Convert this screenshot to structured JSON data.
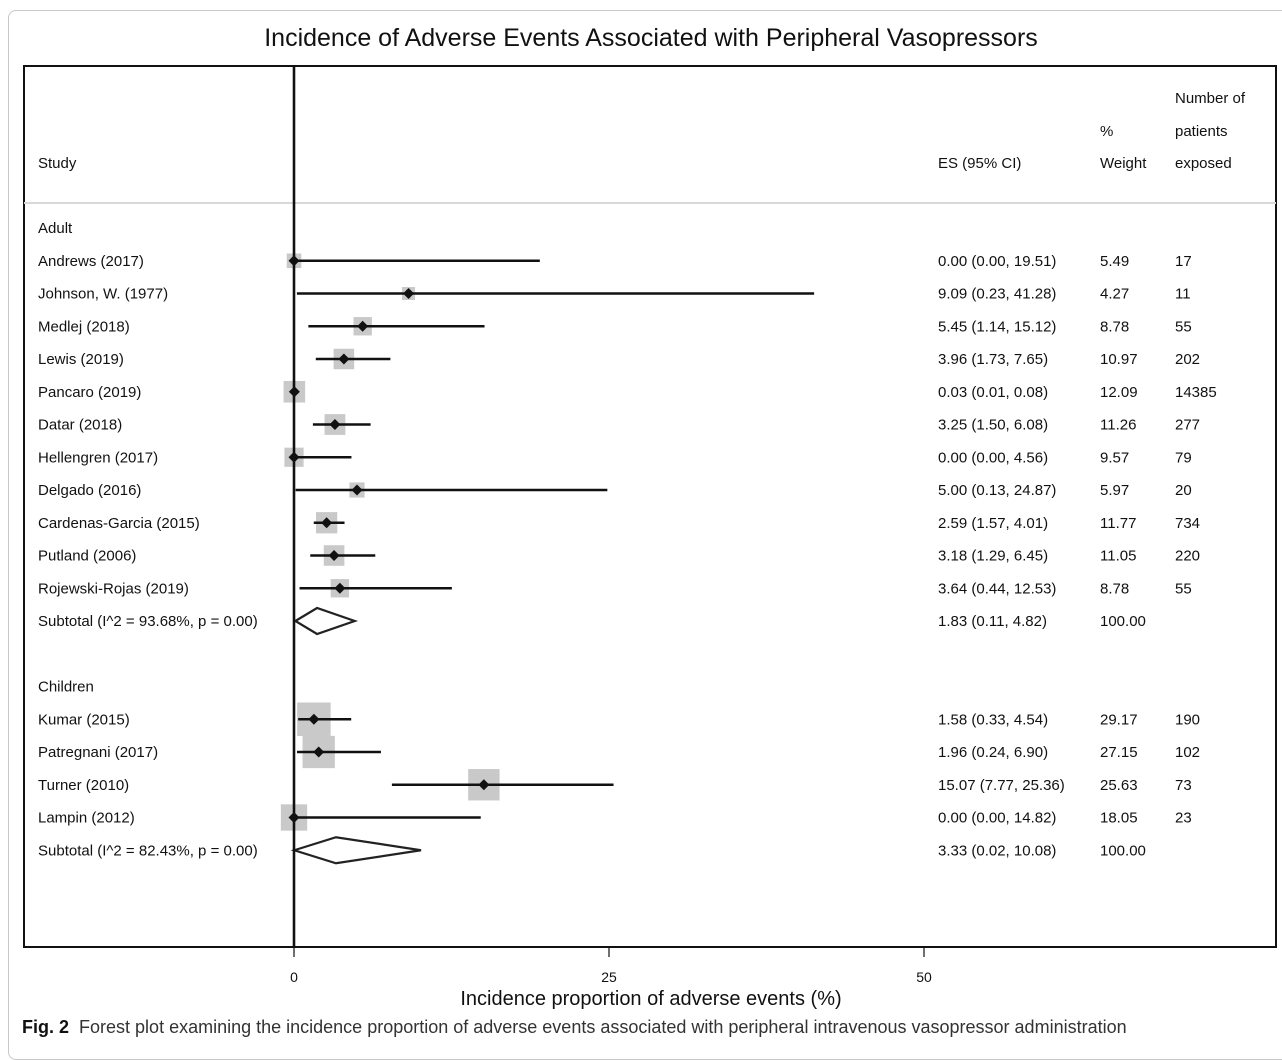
{
  "chart_data": {
    "type": "forest",
    "title": "Incidence of Adverse Events Associated with Peripheral Vasopressors",
    "xlabel": "Incidence proportion of adverse events (%)",
    "xticks": [
      0,
      25,
      50
    ],
    "xlim": [
      0,
      50
    ],
    "reference_line": 0,
    "headers": {
      "study": "Study",
      "es": "ES (95% CI)",
      "weight": [
        "%",
        "Weight"
      ],
      "patients": [
        "Number of",
        "patients",
        "exposed"
      ]
    },
    "groups": [
      {
        "name": "Adult",
        "studies": [
          {
            "study": "Andrews (2017)",
            "es": 0.0,
            "lo": 0.0,
            "hi": 19.51,
            "es_text": "0.00 (0.00, 19.51)",
            "weight": "5.49",
            "n": "17"
          },
          {
            "study": "Johnson, W. (1977)",
            "es": 9.09,
            "lo": 0.23,
            "hi": 41.28,
            "es_text": "9.09 (0.23, 41.28)",
            "weight": "4.27",
            "n": "11"
          },
          {
            "study": "Medlej (2018)",
            "es": 5.45,
            "lo": 1.14,
            "hi": 15.12,
            "es_text": "5.45 (1.14, 15.12)",
            "weight": "8.78",
            "n": "55"
          },
          {
            "study": "Lewis (2019)",
            "es": 3.96,
            "lo": 1.73,
            "hi": 7.65,
            "es_text": "3.96 (1.73, 7.65)",
            "weight": "10.97",
            "n": "202"
          },
          {
            "study": "Pancaro (2019)",
            "es": 0.03,
            "lo": 0.01,
            "hi": 0.08,
            "es_text": "0.03 (0.01, 0.08)",
            "weight": "12.09",
            "n": "14385"
          },
          {
            "study": "Datar (2018)",
            "es": 3.25,
            "lo": 1.5,
            "hi": 6.08,
            "es_text": "3.25 (1.50, 6.08)",
            "weight": "11.26",
            "n": "277"
          },
          {
            "study": "Hellengren (2017)",
            "es": 0.0,
            "lo": 0.0,
            "hi": 4.56,
            "es_text": "0.00 (0.00, 4.56)",
            "weight": "9.57",
            "n": "79"
          },
          {
            "study": "Delgado (2016)",
            "es": 5.0,
            "lo": 0.13,
            "hi": 24.87,
            "es_text": "5.00 (0.13, 24.87)",
            "weight": "5.97",
            "n": "20"
          },
          {
            "study": "Cardenas-Garcia (2015)",
            "es": 2.59,
            "lo": 1.57,
            "hi": 4.01,
            "es_text": "2.59 (1.57, 4.01)",
            "weight": "11.77",
            "n": "734"
          },
          {
            "study": "Putland (2006)",
            "es": 3.18,
            "lo": 1.29,
            "hi": 6.45,
            "es_text": "3.18 (1.29, 6.45)",
            "weight": "11.05",
            "n": "220"
          },
          {
            "study": "Rojewski-Rojas (2019)",
            "es": 3.64,
            "lo": 0.44,
            "hi": 12.53,
            "es_text": "3.64 (0.44, 12.53)",
            "weight": "8.78",
            "n": "55"
          }
        ],
        "subtotal": {
          "label": "Subtotal  (I^2 = 93.68%, p = 0.00)",
          "es": 1.83,
          "lo": 0.11,
          "hi": 4.82,
          "es_text": "1.83 (0.11, 4.82)",
          "weight": "100.00"
        }
      },
      {
        "name": "Children",
        "studies": [
          {
            "study": "Kumar (2015)",
            "es": 1.58,
            "lo": 0.33,
            "hi": 4.54,
            "es_text": "1.58 (0.33, 4.54)",
            "weight": "29.17",
            "n": "190"
          },
          {
            "study": "Patregnani (2017)",
            "es": 1.96,
            "lo": 0.24,
            "hi": 6.9,
            "es_text": "1.96 (0.24, 6.90)",
            "weight": "27.15",
            "n": "102"
          },
          {
            "study": "Turner (2010)",
            "es": 15.07,
            "lo": 7.77,
            "hi": 25.36,
            "es_text": "15.07 (7.77, 25.36)",
            "weight": "25.63",
            "n": "73"
          },
          {
            "study": "Lampin (2012)",
            "es": 0.0,
            "lo": 0.0,
            "hi": 14.82,
            "es_text": "0.00 (0.00, 14.82)",
            "weight": "18.05",
            "n": "23"
          }
        ],
        "subtotal": {
          "label": "Subtotal  (I^2 = 82.43%, p = 0.00)",
          "es": 3.33,
          "lo": 0.02,
          "hi": 10.08,
          "es_text": "3.33 (0.02, 10.08)",
          "weight": "100.00"
        }
      }
    ]
  },
  "caption": {
    "label": "Fig. 2",
    "text": "Forest plot examining the incidence proportion of adverse events associated with peripheral intravenous vasopressor administration"
  }
}
